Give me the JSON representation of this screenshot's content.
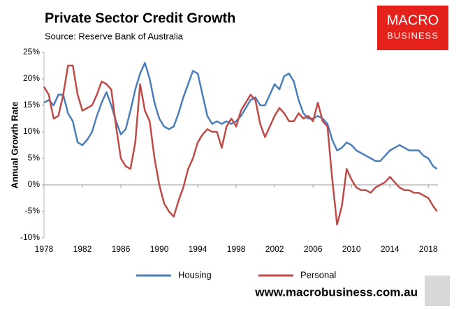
{
  "chart_data": {
    "type": "line",
    "title": "Private Sector Credit Growth",
    "subtitle": "Source: Reserve Bank of Australia",
    "y_label": "Annual Growth Rate",
    "x": [
      1978,
      1978.5,
      1979,
      1979.5,
      1980,
      1980.5,
      1981,
      1981.5,
      1982,
      1982.5,
      1983,
      1983.5,
      1984,
      1984.5,
      1985,
      1985.5,
      1986,
      1986.5,
      1987,
      1987.5,
      1988,
      1988.5,
      1989,
      1989.5,
      1990,
      1990.5,
      1991,
      1991.5,
      1992,
      1992.5,
      1993,
      1993.5,
      1994,
      1994.5,
      1995,
      1995.5,
      1996,
      1996.5,
      1997,
      1997.5,
      1998,
      1998.5,
      1999,
      1999.5,
      2000,
      2000.5,
      2001,
      2001.5,
      2002,
      2002.5,
      2003,
      2003.5,
      2004,
      2004.5,
      2005,
      2005.5,
      2006,
      2006.5,
      2007,
      2007.5,
      2008,
      2008.5,
      2009,
      2009.5,
      2010,
      2010.5,
      2011,
      2011.5,
      2012,
      2012.5,
      2013,
      2013.5,
      2014,
      2014.5,
      2015,
      2015.5,
      2016,
      2016.5,
      2017,
      2017.5,
      2018,
      2018.5,
      2018.9
    ],
    "series": [
      {
        "name": "Housing",
        "color": "#4a7ebb",
        "values": [
          15.5,
          16,
          15,
          17,
          17,
          13.5,
          12,
          8,
          7.5,
          8.5,
          10,
          13,
          15.5,
          17.5,
          15,
          12,
          9.5,
          10.5,
          14,
          18,
          21,
          23,
          20,
          15.5,
          12.5,
          11,
          10.5,
          11,
          13.5,
          16.5,
          19,
          21.5,
          21,
          17,
          13,
          11.5,
          12,
          11.5,
          12,
          11.5,
          12,
          13,
          14.5,
          16,
          16.5,
          15,
          15,
          17,
          19,
          18,
          20.5,
          21,
          19.5,
          16,
          13.5,
          12.5,
          12.5,
          13,
          12.5,
          11.5,
          8.5,
          6.5,
          7,
          8,
          7.5,
          6.5,
          6,
          5.5,
          5,
          4.5,
          4.5,
          5.5,
          6.5,
          7,
          7.5,
          7,
          6.5,
          6.5,
          6.5,
          5.5,
          5,
          3.5,
          3
        ]
      },
      {
        "name": "Personal",
        "color": "#be4b48",
        "values": [
          18.5,
          17,
          12.5,
          13,
          17,
          22.5,
          22.5,
          17,
          14,
          14.5,
          15,
          17,
          19.5,
          19,
          18,
          11,
          5,
          3.5,
          3,
          8,
          19,
          14,
          12,
          5,
          0,
          -3.5,
          -5,
          -6,
          -3,
          -0.5,
          3,
          5,
          8,
          9.5,
          10.5,
          10,
          10,
          7,
          11,
          12.5,
          11,
          14,
          15.5,
          17,
          16,
          11.5,
          9,
          11,
          13,
          14.5,
          13.5,
          12,
          12,
          13.5,
          12.5,
          13,
          12,
          15.5,
          12,
          11,
          1,
          -7.5,
          -4,
          3,
          1,
          -0.5,
          -1,
          -1,
          -1.5,
          -0.5,
          0,
          0.5,
          1.5,
          0.5,
          -0.5,
          -1,
          -1,
          -1.5,
          -1.5,
          -2,
          -2.5,
          -4,
          -5
        ]
      }
    ],
    "xlim": [
      1978,
      2019
    ],
    "xticks": [
      1978,
      1982,
      1986,
      1990,
      1994,
      1998,
      2002,
      2006,
      2010,
      2014,
      2018
    ],
    "ylim": [
      -10,
      25
    ],
    "yticks": [
      {
        "value": -10,
        "label": "-10%"
      },
      {
        "value": -5,
        "label": "-5%"
      },
      {
        "value": 0,
        "label": "0%"
      },
      {
        "value": 5,
        "label": "5%"
      },
      {
        "value": 10,
        "label": "10%"
      },
      {
        "value": 15,
        "label": "15%"
      },
      {
        "value": 20,
        "label": "20%"
      },
      {
        "value": 25,
        "label": "25%"
      }
    ],
    "grid": false,
    "legend": "bottom"
  },
  "logo": [
    "MACRO",
    "BUSINESS"
  ],
  "footer": "www.macrobusiness.com.au"
}
